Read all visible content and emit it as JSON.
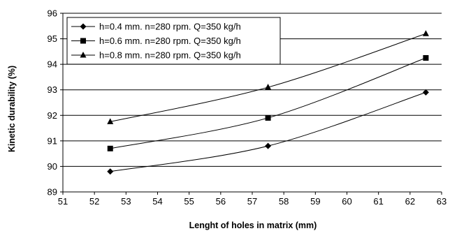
{
  "chart_data": {
    "type": "line",
    "xlabel": "Lenght of holes in matrix (mm)",
    "ylabel": "Kinetic durability (%)",
    "xlim": [
      51,
      63
    ],
    "ylim": [
      89,
      96
    ],
    "xticks": [
      "51",
      "52",
      "53",
      "54",
      "55",
      "56",
      "57",
      "58",
      "59",
      "60",
      "61",
      "62",
      "63"
    ],
    "yticks": [
      "89",
      "90",
      "91",
      "92",
      "93",
      "94",
      "95",
      "96"
    ],
    "grid": "horizontal",
    "legend_position": "top-left",
    "series": [
      {
        "name": "h=0.4 mm. n=280 rpm. Q=350 kg/h",
        "marker": "diamond",
        "x": [
          52.5,
          57.5,
          62.5
        ],
        "y": [
          89.8,
          90.8,
          92.9
        ]
      },
      {
        "name": "h=0.6 mm. n=280 rpm. Q=350 kg/h",
        "marker": "square",
        "x": [
          52.5,
          57.5,
          62.5
        ],
        "y": [
          90.7,
          91.9,
          94.25
        ]
      },
      {
        "name": "h=0.8 mm. n=280 rpm. Q=350 kg/h",
        "marker": "triangle",
        "x": [
          52.5,
          57.5,
          62.5
        ],
        "y": [
          91.75,
          93.1,
          95.2
        ]
      }
    ]
  }
}
